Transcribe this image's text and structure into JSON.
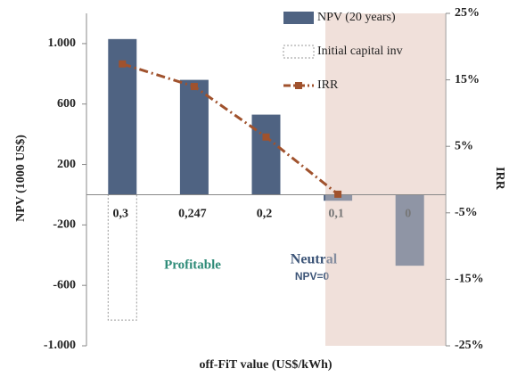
{
  "chart_data": {
    "type": "bar",
    "categories": [
      "0,3",
      "0,247",
      "0,2",
      "0,1",
      "0"
    ],
    "series": [
      {
        "name": "NPV (20 years)",
        "type": "bar",
        "color": "#4f6382",
        "values": [
          1030,
          760,
          530,
          -40,
          -470
        ]
      },
      {
        "name": "Initial capital inv",
        "type": "outline",
        "color": "#999999",
        "values": [
          -830,
          null,
          null,
          null,
          null
        ]
      },
      {
        "name": "IRR",
        "type": "line",
        "axis": "y2",
        "color": "#a0522d",
        "values": [
          17.4,
          14,
          6.4,
          -2.2,
          null
        ]
      }
    ],
    "ylim": [
      -1000,
      1200
    ],
    "yticks": [
      {
        "value": -1000,
        "label": "-1.000"
      },
      -600,
      -200,
      200,
      600,
      {
        "value": 1000,
        "label": "1.000"
      }
    ],
    "y2lim": [
      -25,
      25
    ],
    "y2ticks": [
      {
        "value": -25,
        "label": "-25%"
      },
      {
        "value": -15,
        "label": "-15%"
      },
      {
        "value": -5,
        "label": "-5%"
      },
      {
        "value": 5,
        "label": "5%"
      },
      {
        "value": 15,
        "label": "15%"
      },
      {
        "value": 25,
        "label": "25%"
      }
    ],
    "ylabel": "NPV (1000 US$)",
    "y2label": "IRR",
    "xlabel": "off-FiT value (US$/kWh)",
    "annotations": [
      "Profitable",
      "Neutral",
      "NPV=0"
    ]
  }
}
